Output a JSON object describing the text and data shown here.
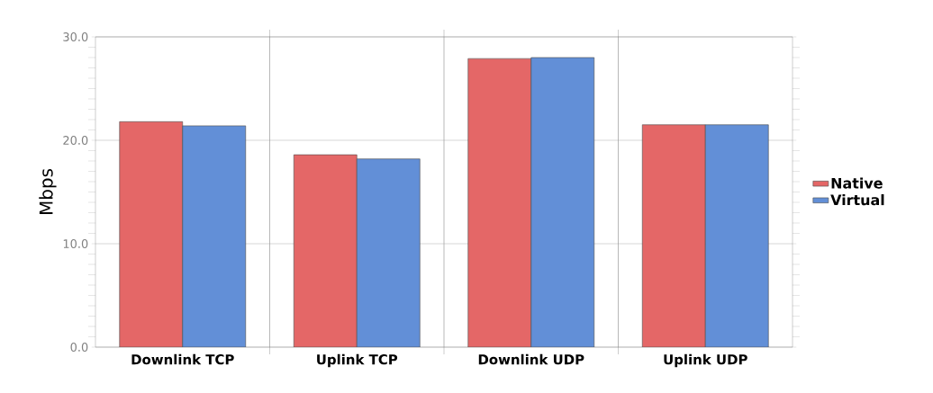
{
  "chart_data": {
    "type": "bar",
    "ylabel": "Mbps",
    "categories": [
      "Downlink TCP",
      "Uplink TCP",
      "Downlink UDP",
      "Uplink UDP"
    ],
    "series": [
      {
        "name": "Native",
        "color": "#e46767",
        "values": [
          21.8,
          18.6,
          27.9,
          21.5
        ]
      },
      {
        "name": "Virtual",
        "color": "#628fd7",
        "values": [
          21.4,
          18.2,
          28.0,
          21.5
        ]
      }
    ],
    "ylim": [
      0,
      30
    ],
    "yticks": [
      {
        "value": 0,
        "label": "0.0"
      },
      {
        "value": 10,
        "label": "10.0"
      },
      {
        "value": 20,
        "label": "20.0"
      },
      {
        "value": 30,
        "label": "30.0"
      }
    ],
    "grid": true,
    "legend": "right"
  }
}
